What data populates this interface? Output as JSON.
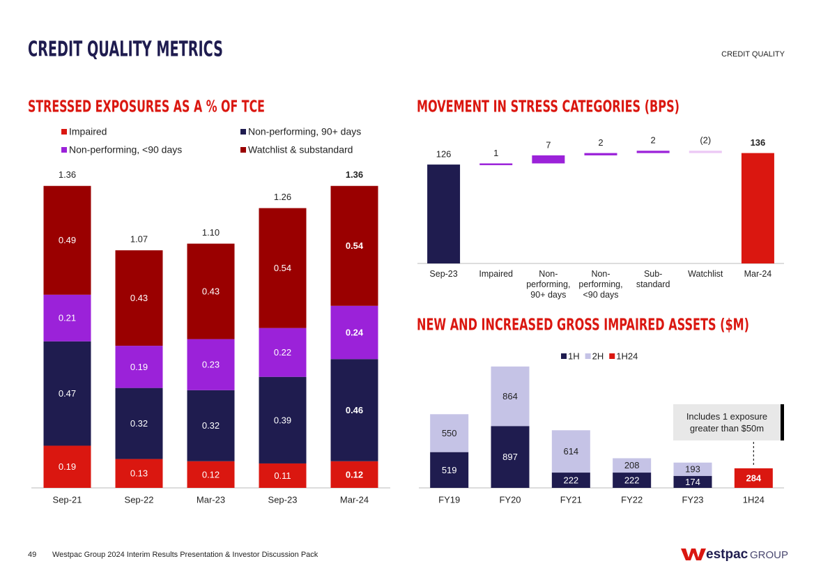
{
  "header": {
    "title": "CREDIT QUALITY METRICS",
    "section": "CREDIT QUALITY"
  },
  "chart_data": [
    {
      "type": "stacked_bar",
      "title": "STRESSED EXPOSURES AS A % OF TCE",
      "categories": [
        "Sep-21",
        "Sep-22",
        "Mar-23",
        "Sep-23",
        "Mar-24"
      ],
      "series": [
        {
          "name": "Impaired",
          "color": "#da1710",
          "values": [
            0.19,
            0.13,
            0.12,
            0.11,
            0.12
          ]
        },
        {
          "name": "Non-performing, 90+ days",
          "color": "#1f1c4f",
          "values": [
            0.47,
            0.32,
            0.32,
            0.39,
            0.46
          ]
        },
        {
          "name": "Non-performing, <90 days",
          "color": "#9b22d9",
          "values": [
            0.21,
            0.19,
            0.23,
            0.22,
            0.24
          ]
        },
        {
          "name": "Watchlist & substandard",
          "color": "#9a0000",
          "values": [
            0.49,
            0.43,
            0.43,
            0.54,
            0.54
          ]
        }
      ],
      "totals": {
        "values": [
          1.36,
          1.07,
          1.1,
          1.26,
          1.36
        ],
        "value_labels": [
          "1.36",
          "1.07",
          "1.10",
          "1.26",
          "1.36"
        ]
      },
      "ylim": [
        0,
        1.4
      ],
      "highlight": "last"
    },
    {
      "type": "waterfall",
      "title": "MOVEMENT IN STRESS CATEGORIES (BPS)",
      "categories": [
        "Sep-23",
        "Impaired",
        "Non-performing, 90+ days",
        "Non-performing, <90 days",
        "Sub-standard",
        "Watchlist",
        "Mar-24"
      ],
      "values": [
        126,
        1,
        7,
        2,
        2,
        -2,
        136
      ],
      "value_labels": [
        "126",
        "1",
        "7",
        "2",
        "2",
        "(2)",
        "136"
      ],
      "measure": [
        "absolute",
        "relative",
        "relative",
        "relative",
        "relative",
        "relative",
        "absolute"
      ],
      "colors": [
        "#1f1c4f",
        "#9b22d9",
        "#9b22d9",
        "#9b22d9",
        "#9b22d9",
        "#ecc8f5",
        "#da1710"
      ],
      "ylim": [
        40,
        140
      ],
      "highlight": "last"
    },
    {
      "type": "stacked_bar",
      "title": "NEW AND INCREASED GROSS IMPAIRED ASSETS ($M)",
      "categories": [
        "FY19",
        "FY20",
        "FY21",
        "FY22",
        "FY23",
        "1H24"
      ],
      "series": [
        {
          "name": "1H",
          "color": "#1f1c4f",
          "values": [
            519,
            897,
            222,
            222,
            174,
            null
          ]
        },
        {
          "name": "2H",
          "color": "#c5c3e6",
          "values": [
            550,
            864,
            614,
            208,
            193,
            null
          ]
        },
        {
          "name": "1H24",
          "color": "#da1710",
          "values": [
            null,
            null,
            null,
            null,
            null,
            284
          ]
        }
      ],
      "annotation": "Includes 1 exposure greater than $50m",
      "ylim": [
        0,
        1800
      ],
      "highlight": "last"
    }
  ],
  "footer": {
    "page": "49",
    "text": "Westpac Group 2024 Interim Results Presentation & Investor Discussion Pack",
    "logo": "estpac",
    "logo_group": "GROUP"
  }
}
